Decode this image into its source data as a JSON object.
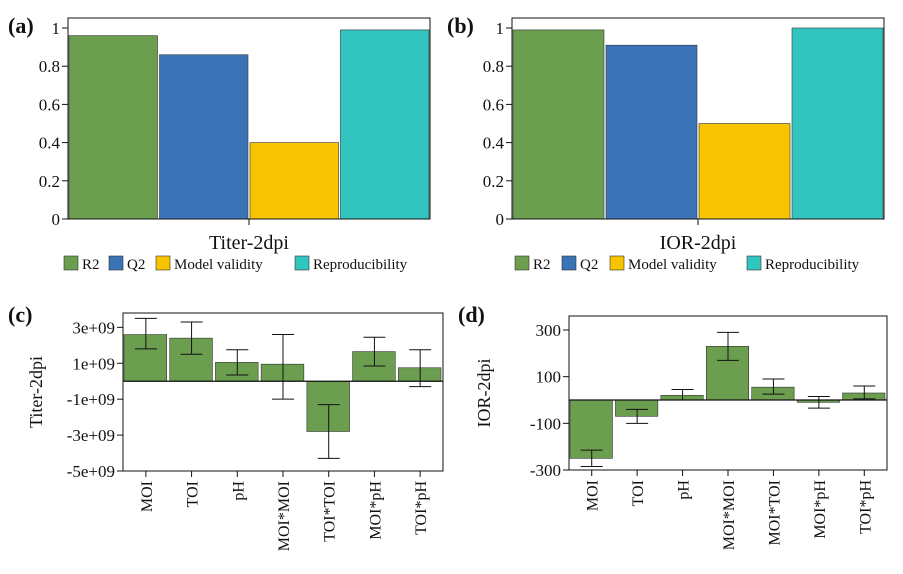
{
  "colors": {
    "green": "#6c9e4f",
    "blue": "#3b74b6",
    "yellow": "#f6c400",
    "teal": "#32c5c0",
    "axis": "#111111"
  },
  "chart_data": [
    {
      "panel": "(a)",
      "type": "bar",
      "xlabel": "Titer-2dpi",
      "ylim": [
        0,
        1
      ],
      "yticks": [
        0,
        0.2,
        0.4,
        0.6,
        0.8,
        1
      ],
      "ytick_labels": [
        "0",
        "0.2",
        "0.4",
        "0.6",
        "0.8",
        "1"
      ],
      "categories": [
        "R2",
        "Q2",
        "Model validity",
        "Reproducibility"
      ],
      "values": [
        0.96,
        0.86,
        0.4,
        0.99
      ],
      "bar_colors": [
        "green",
        "blue",
        "yellow",
        "teal"
      ],
      "legend": [
        "R2",
        "Q2",
        "Model validity",
        "Reproducibility"
      ],
      "legend_position": "bottom"
    },
    {
      "panel": "(b)",
      "type": "bar",
      "xlabel": "IOR-2dpi",
      "ylim": [
        0,
        1
      ],
      "yticks": [
        0,
        0.2,
        0.4,
        0.6,
        0.8,
        1
      ],
      "ytick_labels": [
        "0",
        "0.2",
        "0.4",
        "0.6",
        "0.8",
        "1"
      ],
      "categories": [
        "R2",
        "Q2",
        "Model validity",
        "Reproducibility"
      ],
      "values": [
        0.99,
        0.91,
        0.5,
        1.0
      ],
      "bar_colors": [
        "green",
        "blue",
        "yellow",
        "teal"
      ],
      "legend": [
        "R2",
        "Q2",
        "Model validity",
        "Reproducibility"
      ],
      "legend_position": "bottom"
    },
    {
      "panel": "(c)",
      "type": "bar",
      "ylabel": "Titer-2dpi",
      "ylim": [
        -5000000000,
        3800000000
      ],
      "yticks": [
        -5000000000,
        -3000000000,
        -1000000000,
        1000000000,
        3000000000
      ],
      "ytick_labels": [
        "-5e+09",
        "-3e+09",
        "-1e+09",
        "1e+09",
        "3e+09"
      ],
      "categories": [
        "MOI",
        "TOI",
        "pH",
        "MOI*MOI",
        "TOI*TOI",
        "MOI*pH",
        "TOI*pH"
      ],
      "values": [
        2600000000,
        2400000000,
        1050000000,
        950000000,
        -2800000000,
        1650000000,
        750000000
      ],
      "error_low": [
        1800000000,
        1500000000,
        350000000,
        -1000000000,
        -4300000000,
        850000000,
        -300000000
      ],
      "error_high": [
        3500000000,
        3300000000,
        1750000000,
        2600000000,
        -1300000000,
        2450000000,
        1750000000
      ],
      "bar_colors": [
        "green",
        "green",
        "green",
        "green",
        "green",
        "green",
        "green"
      ]
    },
    {
      "panel": "(d)",
      "type": "bar",
      "ylabel": "IOR-2dpi",
      "ylim": [
        -300,
        360
      ],
      "yticks": [
        -300,
        -100,
        100,
        300
      ],
      "ytick_labels": [
        "-300",
        "-100",
        "100",
        "300"
      ],
      "categories": [
        "MOI",
        "TOI",
        "pH",
        "MOI*MOI",
        "MOI*TOI",
        "MOI*pH",
        "TOI*pH"
      ],
      "values": [
        -250,
        -70,
        20,
        230,
        55,
        -10,
        30
      ],
      "error_low": [
        -285,
        -100,
        0,
        170,
        25,
        -35,
        5
      ],
      "error_high": [
        -215,
        -40,
        45,
        290,
        90,
        15,
        60
      ],
      "bar_colors": [
        "green",
        "green",
        "green",
        "green",
        "green",
        "green",
        "green"
      ]
    }
  ]
}
